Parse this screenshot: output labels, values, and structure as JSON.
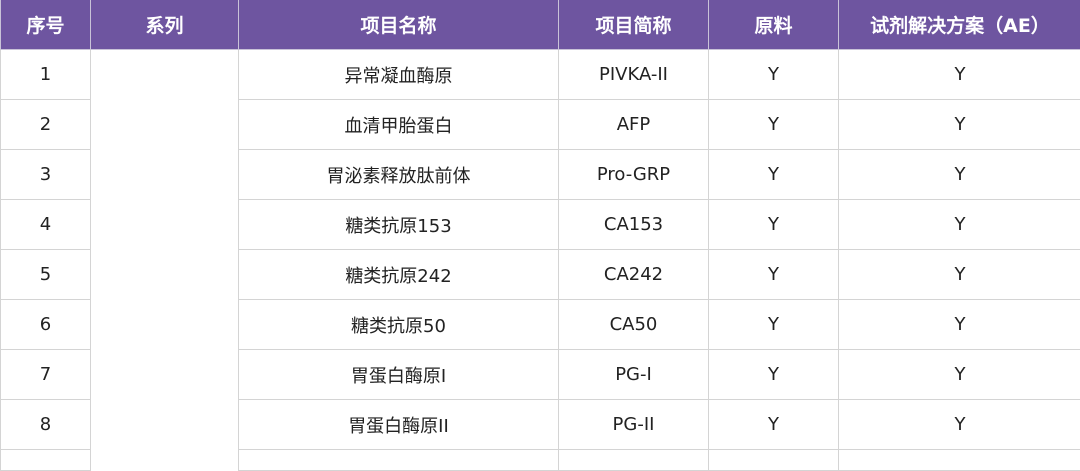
{
  "header_color": "#6e55a0",
  "columns": [
    "序号",
    "系列",
    "项目名称",
    "项目简称",
    "原料",
    "试剂解决方案（AE）"
  ],
  "series_value": "",
  "rows": [
    {
      "no": "1",
      "name": "异常凝血酶原",
      "abbr": "PIVKA-II",
      "raw": "Y",
      "ae": "Y"
    },
    {
      "no": "2",
      "name": "血清甲胎蛋白",
      "abbr": "AFP",
      "raw": "Y",
      "ae": "Y"
    },
    {
      "no": "3",
      "name": "胃泌素释放肽前体",
      "abbr": "Pro-GRP",
      "raw": "Y",
      "ae": "Y"
    },
    {
      "no": "4",
      "name": "糖类抗原153",
      "abbr": "CA153",
      "raw": "Y",
      "ae": "Y"
    },
    {
      "no": "5",
      "name": "糖类抗原242",
      "abbr": "CA242",
      "raw": "Y",
      "ae": "Y"
    },
    {
      "no": "6",
      "name": "糖类抗原50",
      "abbr": "CA50",
      "raw": "Y",
      "ae": "Y"
    },
    {
      "no": "7",
      "name": "胃蛋白酶原I",
      "abbr": "PG-I",
      "raw": "Y",
      "ae": "Y"
    },
    {
      "no": "8",
      "name": "胃蛋白酶原II",
      "abbr": "PG-II",
      "raw": "Y",
      "ae": "Y"
    }
  ]
}
